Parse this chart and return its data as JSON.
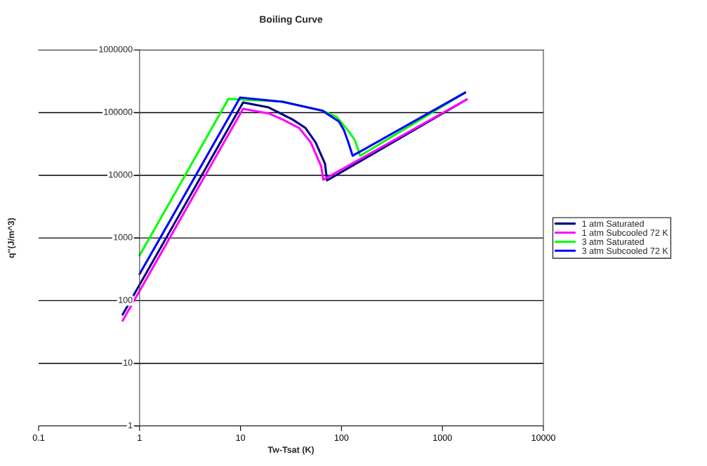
{
  "chart_data": {
    "type": "line",
    "title": "Boiling Curve",
    "xlabel": "Tw-Tsat (K)",
    "ylabel": "q''(J/m^3)",
    "log": "xy",
    "grid": "y",
    "legend": "right",
    "line_style": "solid",
    "marker": "none",
    "xlim": [
      0.1,
      10000
    ],
    "xticks": [
      0.1,
      1,
      10,
      100,
      1000,
      10000
    ],
    "ylim": [
      1,
      1000000
    ],
    "yticks": [
      1,
      10,
      100,
      1000,
      10000,
      100000,
      1000000
    ],
    "series": [
      {
        "name": "1 atm Saturated",
        "color": "#000080",
        "x": [
          0.68,
          10.6,
          19,
          32.6,
          44,
          55.5,
          68.5,
          72,
          1740
        ],
        "values": [
          60,
          145000,
          121000,
          78000,
          57000,
          33400,
          15500,
          8300,
          162000
        ]
      },
      {
        "name": "1 atm Subcooled 72 K",
        "color": "#ff00ff",
        "x": [
          0.68,
          10.6,
          19,
          26,
          38,
          49.7,
          63,
          66,
          1740
        ],
        "values": [
          48,
          115000,
          97000,
          78000,
          57000,
          33400,
          13900,
          8500,
          162000
        ]
      },
      {
        "name": "3 atm Saturated",
        "color": "#00ff00",
        "x": [
          1.0,
          7.6,
          10,
          26,
          65,
          90,
          117,
          135,
          149,
          153,
          1680
        ],
        "values": [
          525,
          166000,
          162000,
          150000,
          107000,
          85000,
          51000,
          37000,
          23400,
          20500,
          209000
        ]
      },
      {
        "name": "3 atm Subcooled 72 K",
        "color": "#0000ff",
        "x": [
          1.0,
          9.9,
          26,
          65,
          94.5,
          106,
          117,
          129,
          1680
        ],
        "values": [
          265,
          174000,
          149000,
          107000,
          72000,
          52000,
          33400,
          20500,
          209000
        ]
      }
    ]
  }
}
